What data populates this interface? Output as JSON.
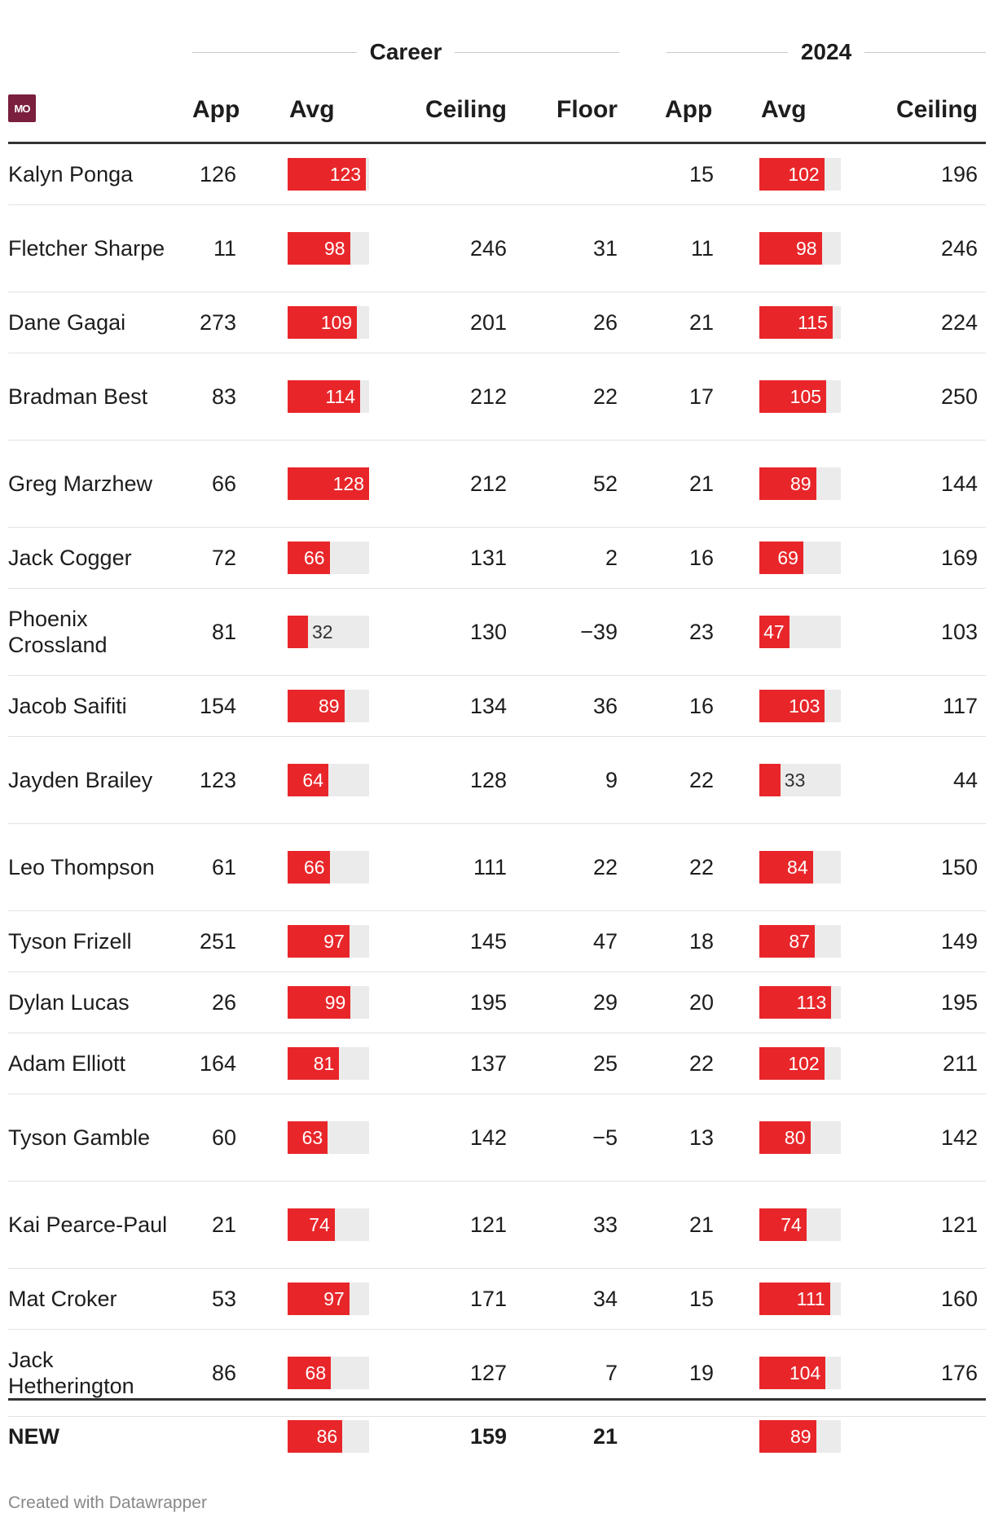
{
  "chart_data": {
    "type": "table",
    "groups": [
      {
        "label": "Career",
        "columns": [
          "App",
          "Avg",
          "Ceiling",
          "Floor"
        ]
      },
      {
        "label": "2024",
        "columns": [
          "App",
          "Avg",
          "Ceiling"
        ]
      }
    ],
    "logo_text": "MO",
    "headers": {
      "app": "App",
      "avg": "Avg",
      "ceiling": "Ceiling",
      "floor": "Floor",
      "app24": "App",
      "avg24": "Avg",
      "ceiling24": "Ceiling"
    },
    "bar_max": 128,
    "rows": [
      {
        "name": "Kalyn Ponga",
        "app": "126",
        "avg": 123,
        "ceiling": "",
        "floor": "",
        "app24": "15",
        "avg24": 102,
        "ceiling24": "196"
      },
      {
        "name": "Fletcher Sharpe",
        "app": "11",
        "avg": 98,
        "ceiling": "246",
        "floor": "31",
        "app24": "11",
        "avg24": 98,
        "ceiling24": "246"
      },
      {
        "name": "Dane Gagai",
        "app": "273",
        "avg": 109,
        "ceiling": "201",
        "floor": "26",
        "app24": "21",
        "avg24": 115,
        "ceiling24": "224"
      },
      {
        "name": "Bradman Best",
        "app": "83",
        "avg": 114,
        "ceiling": "212",
        "floor": "22",
        "app24": "17",
        "avg24": 105,
        "ceiling24": "250"
      },
      {
        "name": "Greg Marzhew",
        "app": "66",
        "avg": 128,
        "ceiling": "212",
        "floor": "52",
        "app24": "21",
        "avg24": 89,
        "ceiling24": "144"
      },
      {
        "name": "Jack Cogger",
        "app": "72",
        "avg": 66,
        "ceiling": "131",
        "floor": "2",
        "app24": "16",
        "avg24": 69,
        "ceiling24": "169"
      },
      {
        "name": "Phoenix Crossland",
        "app": "81",
        "avg": 32,
        "ceiling": "130",
        "floor": "−39",
        "app24": "23",
        "avg24": 47,
        "ceiling24": "103"
      },
      {
        "name": "Jacob Saifiti",
        "app": "154",
        "avg": 89,
        "ceiling": "134",
        "floor": "36",
        "app24": "16",
        "avg24": 103,
        "ceiling24": "117"
      },
      {
        "name": "Jayden Brailey",
        "app": "123",
        "avg": 64,
        "ceiling": "128",
        "floor": "9",
        "app24": "22",
        "avg24": 33,
        "ceiling24": "44"
      },
      {
        "name": "Leo Thompson",
        "app": "61",
        "avg": 66,
        "ceiling": "111",
        "floor": "22",
        "app24": "22",
        "avg24": 84,
        "ceiling24": "150"
      },
      {
        "name": "Tyson Frizell",
        "app": "251",
        "avg": 97,
        "ceiling": "145",
        "floor": "47",
        "app24": "18",
        "avg24": 87,
        "ceiling24": "149"
      },
      {
        "name": "Dylan Lucas",
        "app": "26",
        "avg": 99,
        "ceiling": "195",
        "floor": "29",
        "app24": "20",
        "avg24": 113,
        "ceiling24": "195"
      },
      {
        "name": "Adam Elliott",
        "app": "164",
        "avg": 81,
        "ceiling": "137",
        "floor": "25",
        "app24": "22",
        "avg24": 102,
        "ceiling24": "211"
      },
      {
        "name": "Tyson Gamble",
        "app": "60",
        "avg": 63,
        "ceiling": "142",
        "floor": "−5",
        "app24": "13",
        "avg24": 80,
        "ceiling24": "142"
      },
      {
        "name": "Kai Pearce-Paul",
        "app": "21",
        "avg": 74,
        "ceiling": "121",
        "floor": "33",
        "app24": "21",
        "avg24": 74,
        "ceiling24": "121"
      },
      {
        "name": "Mat Croker",
        "app": "53",
        "avg": 97,
        "ceiling": "171",
        "floor": "34",
        "app24": "15",
        "avg24": 111,
        "ceiling24": "160"
      },
      {
        "name": "Jack Hetherington",
        "app": "86",
        "avg": 68,
        "ceiling": "127",
        "floor": "7",
        "app24": "19",
        "avg24": 104,
        "ceiling24": "176"
      }
    ],
    "total": {
      "name": "NEW",
      "app": "",
      "avg": 86,
      "ceiling": "159",
      "floor": "21",
      "app24": "",
      "avg24": 89,
      "ceiling24": ""
    },
    "colors": {
      "bar": "#e8262a",
      "bar_bg": "#ebebeb",
      "logo": "#7a1f3d"
    }
  },
  "footer": "Created with Datawrapper"
}
